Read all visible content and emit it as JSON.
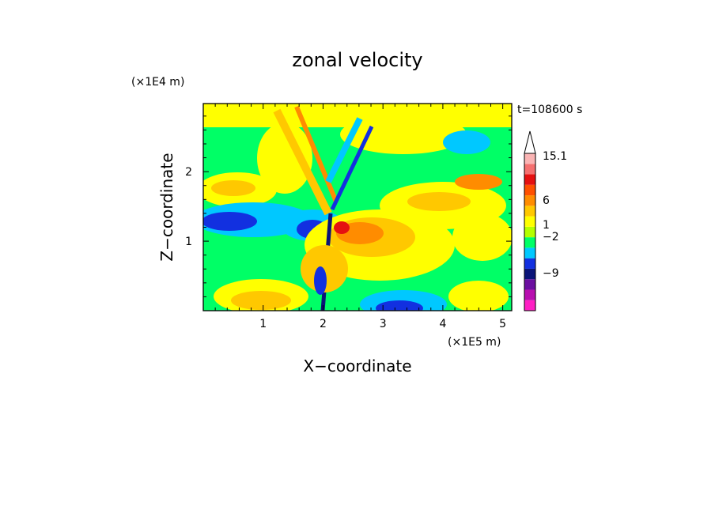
{
  "chart_data": {
    "type": "heatmap",
    "title": "zonal velocity",
    "xlabel": "X−coordinate",
    "ylabel": "Z−coordinate",
    "x_unit": "(×1E5 m)",
    "y_unit": "(×1E4 m)",
    "time_label": "t=108600 s",
    "xlim": [
      0,
      5.15
    ],
    "ylim": [
      0,
      2.98
    ],
    "xticks": [
      1,
      2,
      3,
      4,
      5
    ],
    "yticks": [
      1,
      2
    ],
    "colorbar": {
      "levels": [
        {
          "color": "#ff1fc4"
        },
        {
          "color": "#b80fb0"
        },
        {
          "color": "#6b0fa0"
        },
        {
          "color": "#0a1478"
        },
        {
          "color": "#1230e0"
        },
        {
          "color": "#00c8ff"
        },
        {
          "color": "#00ff66"
        },
        {
          "color": "#b4ff00"
        },
        {
          "color": "#ffff00"
        },
        {
          "color": "#ffc800"
        },
        {
          "color": "#ff8c00"
        },
        {
          "color": "#ff5000"
        },
        {
          "color": "#e51010"
        },
        {
          "color": "#f57070"
        },
        {
          "color": "#fab4b4"
        }
      ],
      "labels": [
        "15.1",
        "6",
        "1",
        "−2",
        "−9"
      ]
    }
  }
}
